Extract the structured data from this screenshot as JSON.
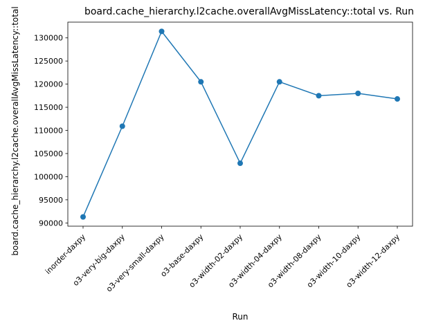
{
  "chart_data": {
    "type": "line",
    "title": "board.cache_hierarchy.l2cache.overallAvgMissLatency::total vs. Run",
    "xlabel": "Run",
    "ylabel": "board.cache_hierarchy.l2cache.overallAvgMissLatency::total",
    "categories": [
      "inorder-daxpy",
      "o3-very-big-daxpy",
      "o3-very-small-daxpy",
      "o3-base-daxpy",
      "o3-width-02-daxpy",
      "o3-width-04-daxpy",
      "o3-width-08-daxpy",
      "o3-width-10-daxpy",
      "o3-width-12-daxpy"
    ],
    "values": [
      91300,
      110900,
      131400,
      120500,
      102900,
      120500,
      117500,
      118000,
      116800
    ],
    "yticks": [
      90000,
      95000,
      100000,
      105000,
      110000,
      115000,
      120000,
      125000,
      130000
    ],
    "ylim": [
      89300,
      133400
    ],
    "grid": false,
    "line_color": "#1f77b4"
  }
}
